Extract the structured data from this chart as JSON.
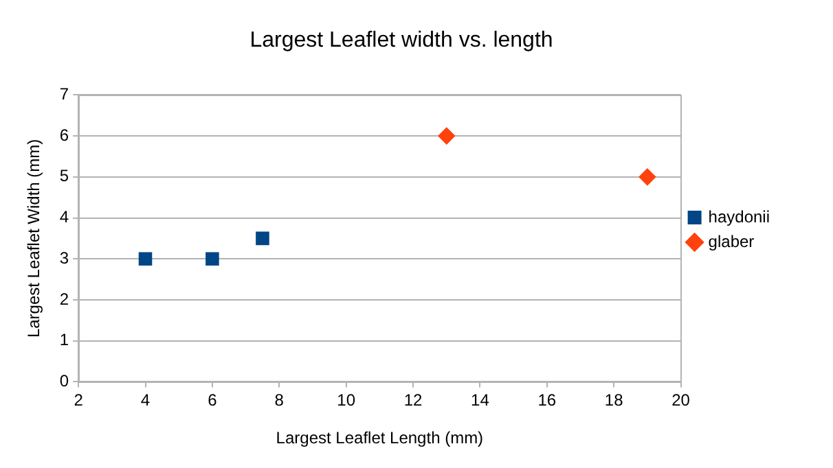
{
  "chart_data": {
    "type": "scatter",
    "title": "Largest Leaflet width vs. length",
    "xlabel": "Largest Leaflet Length (mm)",
    "ylabel": "Largest Leaflet Width (mm)",
    "series": [
      {
        "name": "haydonii",
        "color": "#004586",
        "marker": "square",
        "x": [
          4,
          6,
          7.5
        ],
        "values": [
          3,
          3,
          3.5
        ]
      },
      {
        "name": "glaber",
        "color": "#ff420e",
        "marker": "diamond",
        "x": [
          13,
          19
        ],
        "values": [
          6,
          5
        ]
      }
    ],
    "xlim": [
      2,
      20
    ],
    "xticks": [
      2,
      4,
      6,
      8,
      10,
      12,
      14,
      16,
      18,
      20
    ],
    "ylim": [
      0,
      7
    ],
    "yticks": [
      0,
      1,
      2,
      3,
      4,
      5,
      6,
      7
    ],
    "grid": "y",
    "legend": "right"
  }
}
